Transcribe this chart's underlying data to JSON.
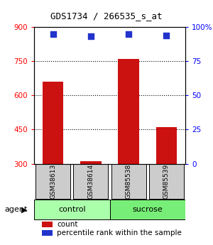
{
  "title": "GDS1734 / 266535_s_at",
  "samples": [
    "GSM38613",
    "GSM38614",
    "GSM85538",
    "GSM85539"
  ],
  "groups": [
    "control",
    "control",
    "sucrose",
    "sucrose"
  ],
  "counts": [
    660,
    310,
    760,
    460
  ],
  "percentiles": [
    95,
    93,
    95,
    94
  ],
  "ylim_left": [
    300,
    900
  ],
  "ylim_right": [
    0,
    100
  ],
  "yticks_left": [
    300,
    450,
    600,
    750,
    900
  ],
  "yticks_right": [
    0,
    25,
    50,
    75,
    100
  ],
  "ytick_labels_right": [
    "0",
    "25",
    "50",
    "75",
    "100%"
  ],
  "bar_color": "#cc1111",
  "dot_color": "#2233cc",
  "bar_width": 0.55,
  "control_color": "#aaffaa",
  "sucrose_color": "#77ee77",
  "agent_label": "agent",
  "legend_items": [
    "count",
    "percentile rank within the sample"
  ],
  "gray_box_color": "#cccccc",
  "grid_dotted_ticks": [
    450,
    600,
    750
  ]
}
